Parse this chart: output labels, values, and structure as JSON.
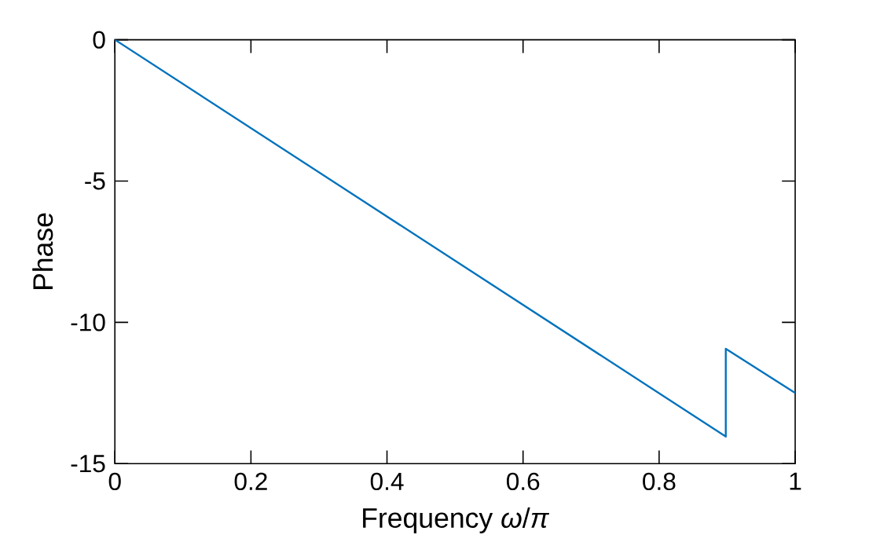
{
  "chart_data": {
    "type": "line",
    "xlabel": "Frequency *ω*/*π*",
    "ylabel": "Phase",
    "x": [
      0,
      0.898,
      0.898,
      1
    ],
    "series": [
      {
        "color": "#0072bd",
        "values": [
          0,
          -14.04,
          -10.93,
          -12.5
        ]
      }
    ],
    "xlim": [
      0,
      1
    ],
    "ylim": [
      -15,
      0
    ],
    "xticks": [
      0,
      0.2,
      0.4,
      0.6,
      0.8,
      1
    ],
    "yticks": [
      -15,
      -10,
      -5,
      0
    ],
    "grid": false,
    "marker": "none",
    "line_style": "solid"
  }
}
